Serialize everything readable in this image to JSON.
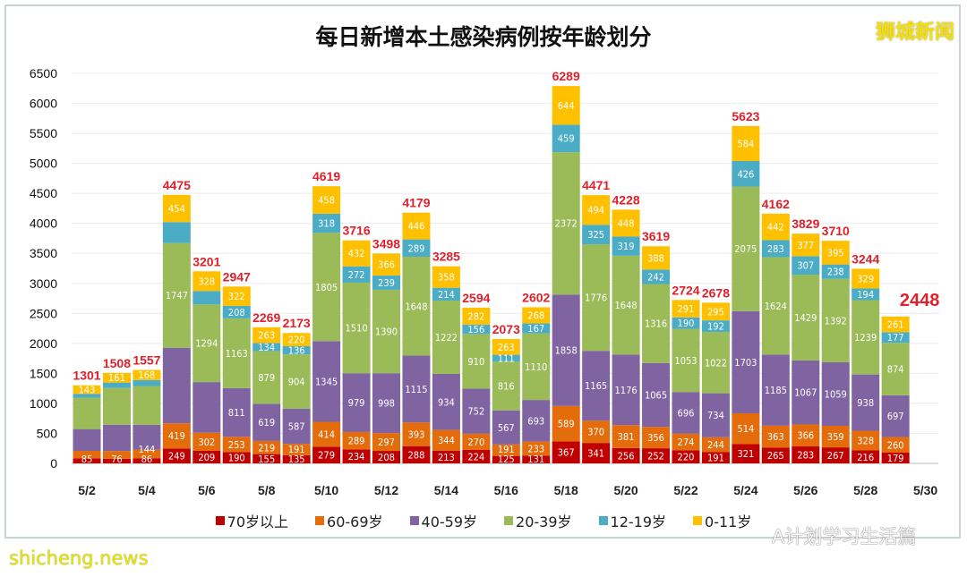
{
  "watermarks": {
    "top_right": "狮城新闻",
    "bottom_left": "shicheng.news",
    "account": "A计划学习生活篇"
  },
  "chart_data": {
    "type": "bar",
    "stacked": true,
    "title": "每日新增本土感染病例按年龄划分",
    "xlabel": "",
    "ylabel": "",
    "ylim": [
      0,
      6500
    ],
    "yticks": [
      0,
      500,
      1000,
      1500,
      2000,
      2500,
      3000,
      3500,
      4000,
      4500,
      5000,
      5500,
      6000,
      6500
    ],
    "grid": true,
    "legend_position": "bottom",
    "x_tick_labels": [
      "5/2",
      "5/4",
      "5/6",
      "5/8",
      "5/10",
      "5/12",
      "5/14",
      "5/16",
      "5/18",
      "5/20",
      "5/22",
      "5/24",
      "5/26",
      "5/28",
      "5/30"
    ],
    "categories": [
      "5/2",
      "5/3",
      "5/4",
      "5/5",
      "5/6",
      "5/7",
      "5/8",
      "5/9",
      "5/10",
      "5/11",
      "5/12",
      "5/13",
      "5/14",
      "5/15",
      "5/16",
      "5/17",
      "5/18",
      "5/19",
      "5/20",
      "5/21",
      "5/22",
      "5/23",
      "5/24",
      "5/25",
      "5/26",
      "5/27",
      "5/28",
      "5/29"
    ],
    "totals": [
      1301,
      1508,
      1557,
      4475,
      3201,
      2947,
      2269,
      2173,
      4619,
      3716,
      3498,
      4179,
      3285,
      2594,
      2073,
      2602,
      6289,
      4471,
      4228,
      3619,
      2724,
      2678,
      5623,
      4162,
      3829,
      3710,
      3244,
      2448
    ],
    "series": [
      {
        "name": "70岁以上",
        "color": "#c00000",
        "values": [
          85,
          76,
          86,
          249,
          209,
          190,
          155,
          135,
          279,
          234,
          208,
          288,
          213,
          224,
          125,
          131,
          367,
          341,
          256,
          252,
          220,
          191,
          321,
          265,
          283,
          267,
          216,
          179
        ]
      },
      {
        "name": "60-69岁",
        "color": "#e46c0a",
        "values": [
          124,
          130,
          144,
          419,
          302,
          253,
          219,
          191,
          414,
          289,
          297,
          393,
          344,
          270,
          191,
          233,
          589,
          370,
          381,
          356,
          274,
          244,
          514,
          363,
          366,
          359,
          328,
          260
        ]
      },
      {
        "name": "40-59岁",
        "color": "#8064a2",
        "values": [
          363,
          438,
          413,
          1258,
          844,
          811,
          619,
          587,
          1345,
          979,
          998,
          1115,
          934,
          752,
          567,
          693,
          1858,
          1165,
          1176,
          1065,
          696,
          734,
          1703,
          1185,
          1067,
          1059,
          938,
          697
        ]
      },
      {
        "name": "20-39岁",
        "color": "#9bbb59",
        "values": [
          522,
          613,
          646,
          1747,
          1294,
          1163,
          879,
          904,
          1805,
          1510,
          1390,
          1648,
          1222,
          910,
          816,
          1110,
          2372,
          1776,
          1648,
          1316,
          1053,
          1022,
          2075,
          1624,
          1429,
          1392,
          1239,
          874
        ]
      },
      {
        "name": "12-19岁",
        "color": "#4bacc6",
        "values": [
          64,
          90,
          100,
          348,
          224,
          208,
          134,
          136,
          318,
          272,
          239,
          289,
          214,
          156,
          111,
          167,
          459,
          325,
          319,
          242,
          190,
          192,
          426,
          283,
          307,
          238,
          194,
          177
        ]
      },
      {
        "name": "0-11岁",
        "color": "#ffc000",
        "values": [
          143,
          161,
          168,
          454,
          328,
          322,
          263,
          220,
          458,
          432,
          366,
          446,
          358,
          282,
          263,
          268,
          644,
          494,
          448,
          388,
          291,
          295,
          584,
          442,
          377,
          395,
          329,
          261
        ]
      }
    ]
  }
}
